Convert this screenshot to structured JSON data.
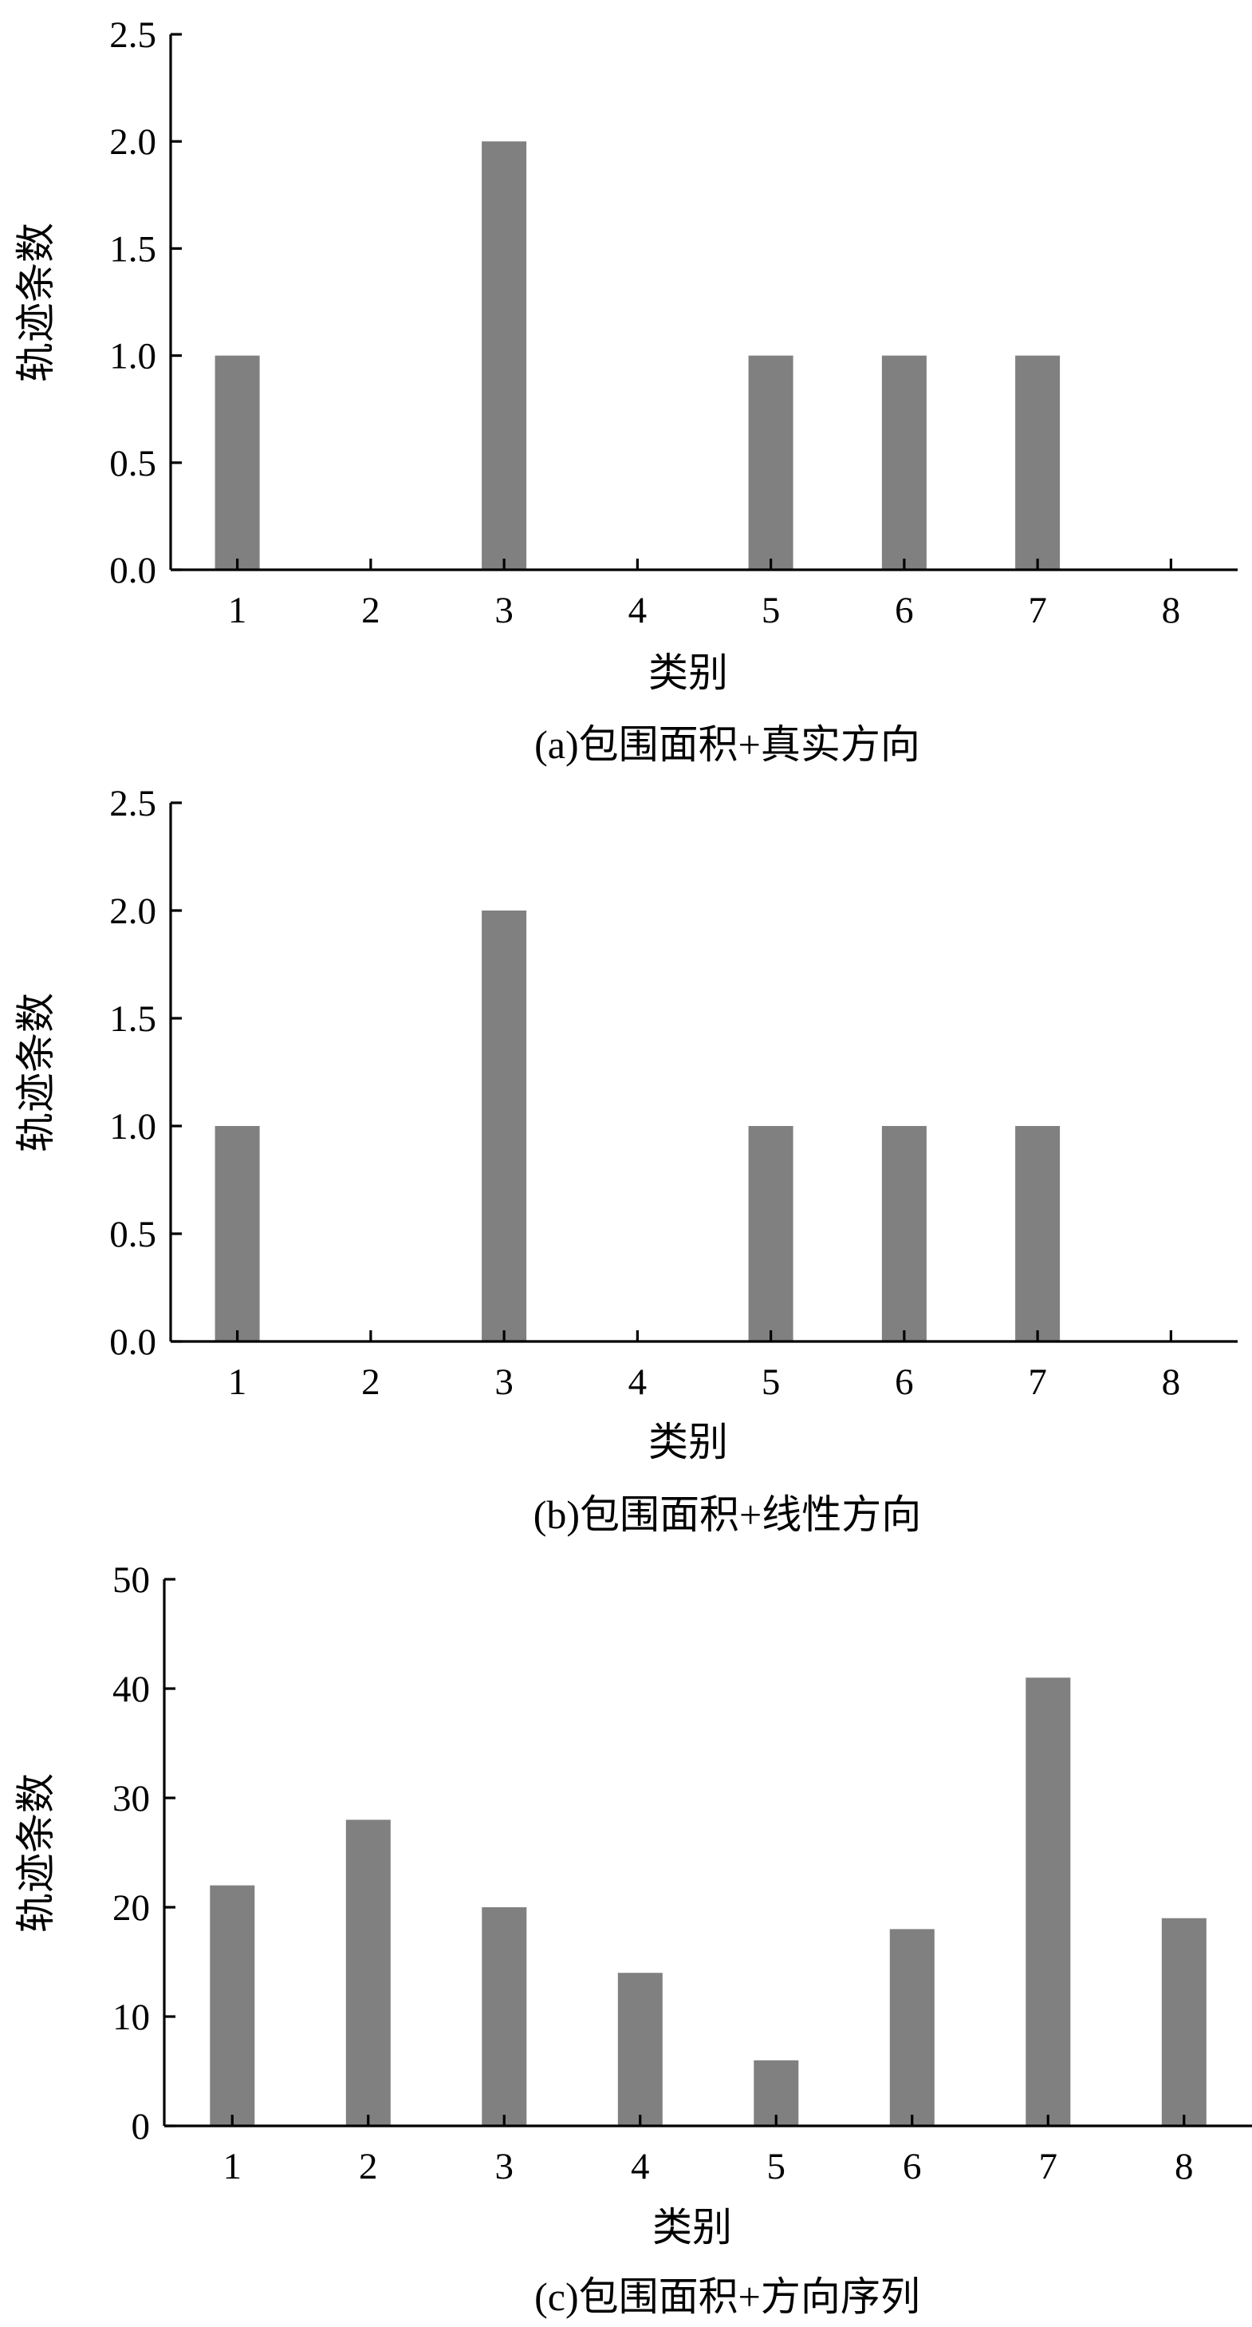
{
  "chart_data": [
    {
      "type": "bar",
      "caption": "(a)包围面积+真实方向",
      "xlabel": "类别",
      "ylabel": "轨迹条数",
      "categories": [
        "1",
        "2",
        "3",
        "4",
        "5",
        "6",
        "7",
        "8"
      ],
      "values": [
        1,
        0,
        2,
        0,
        1,
        1,
        1,
        0
      ],
      "ylim": [
        0,
        2.5
      ],
      "yticks": [
        "0.0",
        "0.5",
        "1.0",
        "1.5",
        "2.0",
        "2.5"
      ],
      "bar_color": "#808080",
      "grid": false,
      "legend": "none"
    },
    {
      "type": "bar",
      "caption": "(b)包围面积+线性方向",
      "xlabel": "类别",
      "ylabel": "轨迹条数",
      "categories": [
        "1",
        "2",
        "3",
        "4",
        "5",
        "6",
        "7",
        "8"
      ],
      "values": [
        1,
        0,
        2,
        0,
        1,
        1,
        1,
        0
      ],
      "ylim": [
        0,
        2.5
      ],
      "yticks": [
        "0.0",
        "0.5",
        "1.0",
        "1.5",
        "2.0",
        "2.5"
      ],
      "bar_color": "#808080",
      "grid": false,
      "legend": "none"
    },
    {
      "type": "bar",
      "caption": "(c)包围面积+方向序列",
      "xlabel": "类别",
      "ylabel": "轨迹条数",
      "categories": [
        "1",
        "2",
        "3",
        "4",
        "5",
        "6",
        "7",
        "8"
      ],
      "values": [
        22,
        28,
        20,
        14,
        6,
        18,
        41,
        19
      ],
      "ylim": [
        0,
        50
      ],
      "yticks": [
        "0",
        "10",
        "20",
        "30",
        "40",
        "50"
      ],
      "bar_color": "#808080",
      "grid": false,
      "legend": "none"
    }
  ]
}
